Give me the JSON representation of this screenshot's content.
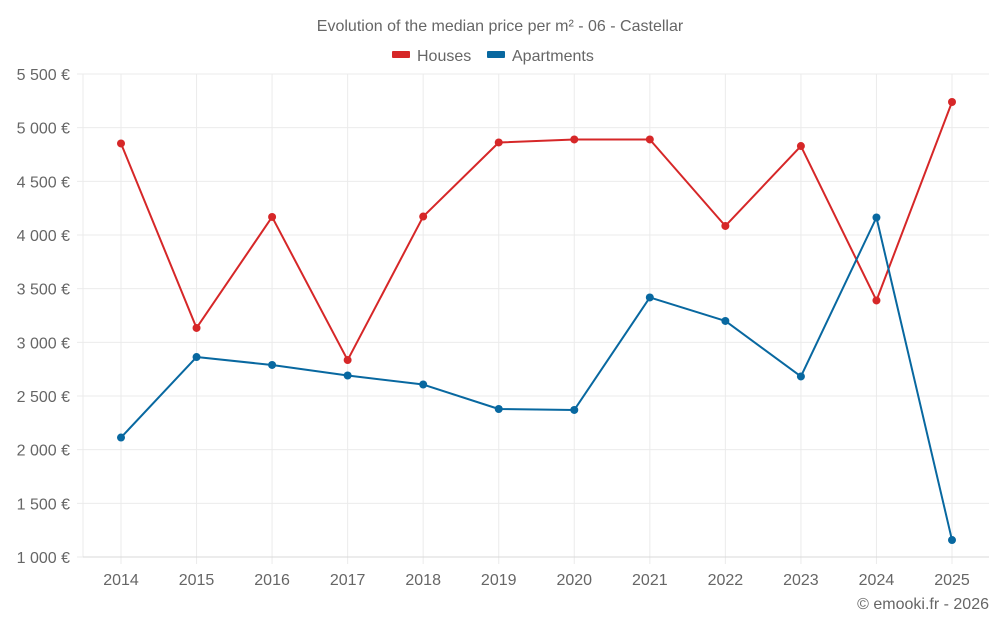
{
  "chart_data": {
    "type": "line",
    "title": "Evolution of the median price per m² - 06 - Castellar",
    "xlabel": "",
    "ylabel": "",
    "categories": [
      "2014",
      "2015",
      "2016",
      "2017",
      "2018",
      "2019",
      "2020",
      "2021",
      "2022",
      "2023",
      "2024",
      "2025"
    ],
    "series": [
      {
        "name": "Houses",
        "color": "#d62728",
        "values": [
          4853,
          3134,
          4168,
          2835,
          4172,
          4862,
          4890,
          4890,
          4084,
          4829,
          3390,
          5239
        ]
      },
      {
        "name": "Apartments",
        "color": "#0868a0",
        "values": [
          2113,
          2863,
          2789,
          2691,
          2607,
          2379,
          2370,
          3418,
          3199,
          2682,
          4163,
          1158
        ]
      }
    ],
    "ylim": [
      1000,
      5500
    ],
    "yticks": [
      1000,
      1500,
      2000,
      2500,
      3000,
      3500,
      4000,
      4500,
      5000,
      5500
    ],
    "ytick_labels": [
      "1 000 €",
      "1 500 €",
      "2 000 €",
      "2 500 €",
      "3 000 €",
      "3 500 €",
      "4 000 €",
      "4 500 €",
      "5 000 €",
      "5 500 €"
    ],
    "grid": true,
    "legend": "top-center",
    "credit": "© emooki.fr - 2026"
  }
}
